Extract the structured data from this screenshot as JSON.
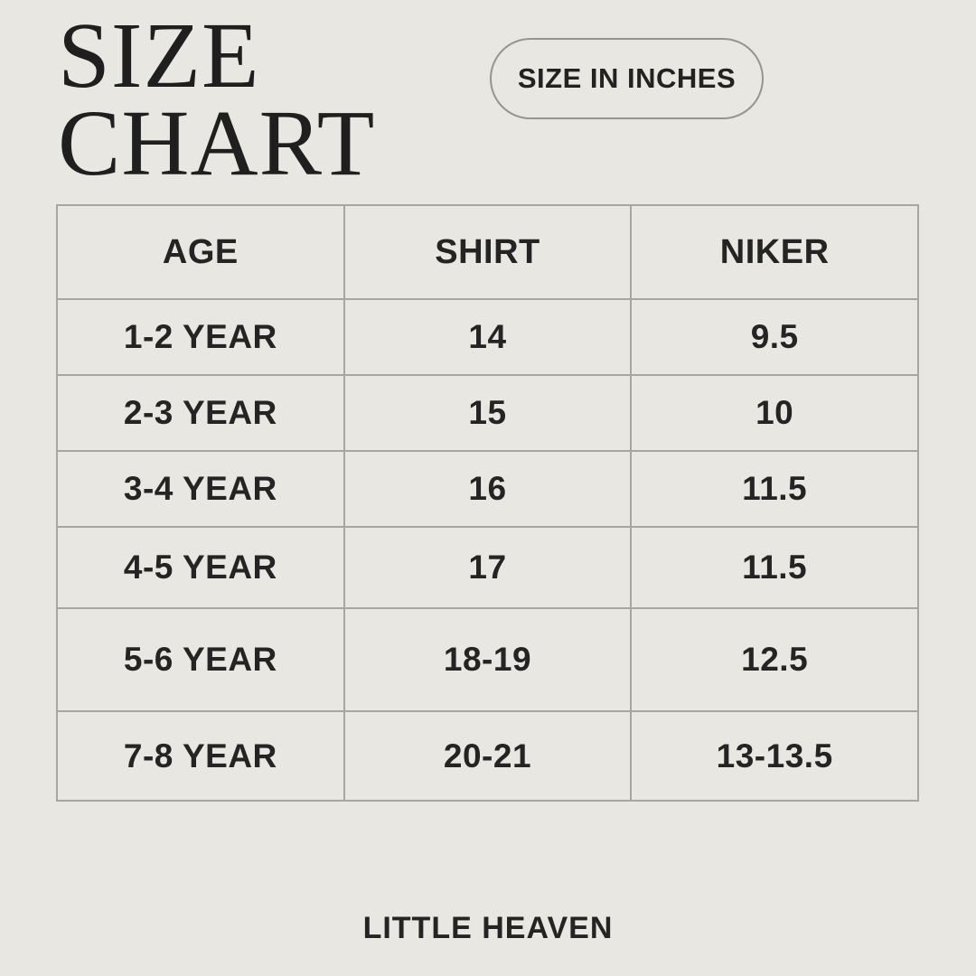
{
  "page": {
    "background_color": "#e9e7e2",
    "text_color": "#1f1f1f",
    "table_border_color": "#a8a6a1"
  },
  "header": {
    "title_line1": "SIZE",
    "title_line2": "CHART",
    "badge_label": "SIZE IN INCHES"
  },
  "footer": {
    "brand": "LITTLE HEAVEN"
  },
  "chart_data": {
    "type": "table",
    "title": "SIZE CHART",
    "unit_note": "SIZE IN INCHES",
    "columns": [
      "AGE",
      "SHIRT",
      "NIKER"
    ],
    "rows": [
      [
        "1-2 YEAR",
        "14",
        "9.5"
      ],
      [
        "2-3 YEAR",
        "15",
        "10"
      ],
      [
        "3-4 YEAR",
        "16",
        "11.5"
      ],
      [
        "4-5 YEAR",
        "17",
        "11.5"
      ],
      [
        "5-6 YEAR",
        "18-19",
        "12.5"
      ],
      [
        "7-8 YEAR",
        "20-21",
        "13-13.5"
      ]
    ]
  }
}
